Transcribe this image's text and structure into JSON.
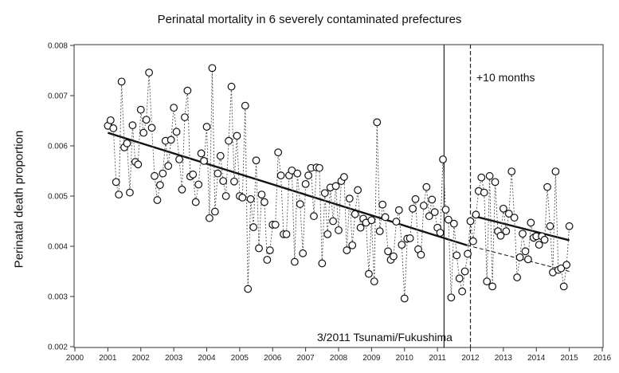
{
  "chart_data": {
    "type": "scatter",
    "title": "Perinatal mortality in 6 severely contaminated prefectures",
    "xlabel": "",
    "ylabel": "Perinatal death proportion",
    "xlim": [
      2000,
      2016
    ],
    "ylim": [
      0.002,
      0.008
    ],
    "x_ticks": [
      "2000",
      "2001",
      "2002",
      "2003",
      "2004",
      "2005",
      "2006",
      "2007",
      "2008",
      "2009",
      "2010",
      "2011",
      "2012",
      "2013",
      "2014",
      "2015",
      "2016"
    ],
    "y_ticks": [
      "0.002",
      "0.003",
      "0.004",
      "0.005",
      "0.006",
      "0.007",
      "0.008"
    ],
    "grid": false,
    "legend": "none",
    "series": [
      {
        "style": "points connected by dotted line",
        "x": [
          2001.0,
          2001.083,
          2001.167,
          2001.25,
          2001.333,
          2001.417,
          2001.5,
          2001.583,
          2001.667,
          2001.75,
          2001.833,
          2001.917,
          2002.0,
          2002.083,
          2002.167,
          2002.25,
          2002.333,
          2002.417,
          2002.5,
          2002.583,
          2002.667,
          2002.75,
          2002.833,
          2002.917,
          2003.0,
          2003.083,
          2003.167,
          2003.25,
          2003.333,
          2003.417,
          2003.5,
          2003.583,
          2003.667,
          2003.75,
          2003.833,
          2003.917,
          2004.0,
          2004.083,
          2004.167,
          2004.25,
          2004.333,
          2004.417,
          2004.5,
          2004.583,
          2004.667,
          2004.75,
          2004.833,
          2004.917,
          2005.0,
          2005.083,
          2005.167,
          2005.25,
          2005.333,
          2005.417,
          2005.5,
          2005.583,
          2005.667,
          2005.75,
          2005.833,
          2005.917,
          2006.0,
          2006.083,
          2006.167,
          2006.25,
          2006.333,
          2006.417,
          2006.5,
          2006.583,
          2006.667,
          2006.75,
          2006.833,
          2006.917,
          2007.0,
          2007.083,
          2007.167,
          2007.25,
          2007.333,
          2007.417,
          2007.5,
          2007.583,
          2007.667,
          2007.75,
          2007.833,
          2007.917,
          2008.0,
          2008.083,
          2008.167,
          2008.25,
          2008.333,
          2008.417,
          2008.5,
          2008.583,
          2008.667,
          2008.75,
          2008.833,
          2008.917,
          2009.0,
          2009.083,
          2009.167,
          2009.25,
          2009.333,
          2009.417,
          2009.5,
          2009.583,
          2009.667,
          2009.75,
          2009.833,
          2009.917,
          2010.0,
          2010.083,
          2010.167,
          2010.25,
          2010.333,
          2010.417,
          2010.5,
          2010.583,
          2010.667,
          2010.75,
          2010.833,
          2010.917,
          2011.0,
          2011.083,
          2011.167,
          2011.25,
          2011.333,
          2011.417,
          2011.5,
          2011.583,
          2011.667,
          2011.75,
          2011.833,
          2011.917,
          2012.0,
          2012.083,
          2012.167,
          2012.25,
          2012.333,
          2012.417,
          2012.5,
          2012.583,
          2012.667,
          2012.75,
          2012.833,
          2012.917,
          2013.0,
          2013.083,
          2013.167,
          2013.25,
          2013.333,
          2013.417,
          2013.5,
          2013.583,
          2013.667,
          2013.75,
          2013.833,
          2013.917,
          2014.0,
          2014.083,
          2014.167,
          2014.25,
          2014.333,
          2014.417,
          2014.5,
          2014.583,
          2014.667,
          2014.75,
          2014.833,
          2014.917,
          2015.0
        ],
        "y": [
          0.0064,
          0.00651,
          0.00635,
          0.00528,
          0.00503,
          0.00728,
          0.00597,
          0.00605,
          0.00507,
          0.00641,
          0.00568,
          0.00563,
          0.00672,
          0.00626,
          0.00652,
          0.00746,
          0.00636,
          0.0054,
          0.00492,
          0.00522,
          0.00545,
          0.0061,
          0.0056,
          0.00612,
          0.00676,
          0.00628,
          0.00573,
          0.00513,
          0.00657,
          0.0071,
          0.00539,
          0.00543,
          0.00488,
          0.00523,
          0.00585,
          0.0057,
          0.00638,
          0.00456,
          0.00755,
          0.00469,
          0.00545,
          0.0058,
          0.0053,
          0.005,
          0.0061,
          0.00718,
          0.00529,
          0.0062,
          0.005,
          0.00497,
          0.0068,
          0.00315,
          0.00494,
          0.00438,
          0.00571,
          0.00396,
          0.00503,
          0.00488,
          0.00373,
          0.00392,
          0.00443,
          0.00443,
          0.00587,
          0.00541,
          0.00424,
          0.00424,
          0.00541,
          0.00551,
          0.00369,
          0.00545,
          0.00484,
          0.00386,
          0.00524,
          0.00541,
          0.00556,
          0.0046,
          0.00557,
          0.00556,
          0.00366,
          0.00506,
          0.00424,
          0.00517,
          0.0045,
          0.0052,
          0.00432,
          0.0053,
          0.00538,
          0.00392,
          0.00495,
          0.00402,
          0.00464,
          0.00512,
          0.00437,
          0.00455,
          0.00447,
          0.00345,
          0.00452,
          0.0033,
          0.00647,
          0.0043,
          0.00483,
          0.00458,
          0.0039,
          0.00373,
          0.0038,
          0.00449,
          0.00472,
          0.00403,
          0.00296,
          0.00415,
          0.00416,
          0.00475,
          0.00494,
          0.00394,
          0.00383,
          0.00481,
          0.00518,
          0.0046,
          0.00493,
          0.00468,
          0.00437,
          0.00427,
          0.00573,
          0.00473,
          0.00453,
          0.00298,
          0.00445,
          0.00382,
          0.00336,
          0.0031,
          0.0035,
          0.00385,
          0.0045,
          0.0041,
          0.00463,
          0.0051,
          0.00537,
          0.00507,
          0.0033,
          0.0054,
          0.0032,
          0.00528,
          0.0043,
          0.00421,
          0.00475,
          0.0043,
          0.00465,
          0.00549,
          0.00457,
          0.00338,
          0.00378,
          0.00425,
          0.0039,
          0.00374,
          0.00447,
          0.00417,
          0.0042,
          0.00403,
          0.0042,
          0.00413,
          0.00518,
          0.0044,
          0.00348,
          0.00549,
          0.00353,
          0.00356,
          0.0032,
          0.00363,
          0.0044
        ]
      },
      {
        "style": "solid trend line 2001-2011",
        "x": [
          2001.0,
          2011.9
        ],
        "y": [
          0.00626,
          0.00402
        ]
      },
      {
        "style": "solid trend line 2012-2015",
        "x": [
          2012.05,
          2015.0
        ],
        "y": [
          0.00461,
          0.00412
        ]
      },
      {
        "style": "dashed extrapolated trend line",
        "x": [
          2011.9,
          2015.0
        ],
        "y": [
          0.00402,
          0.0035
        ]
      }
    ],
    "annotations": [
      {
        "style": "solid vertical line",
        "x": 2011.2,
        "label": "3/2011 Tsunami/Fukushima"
      },
      {
        "style": "dashed vertical line",
        "x": 2012.0,
        "label": "+10 months"
      }
    ]
  }
}
